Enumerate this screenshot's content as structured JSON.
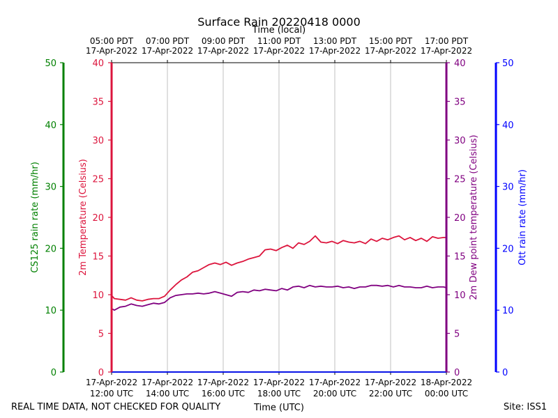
{
  "chart_data": {
    "type": "line",
    "title": "Surface Rain 20220418 0000",
    "top_xlabel": "Time (local)",
    "xlabel": "Time (UTC)",
    "footer_left": "REAL TIME DATA, NOT CHECKED FOR QUALITY",
    "footer_right": "Site: ISS1",
    "x_range_hours": [
      12,
      24
    ],
    "x_ticks": [
      {
        "hour": 12,
        "bottom": [
          "17-Apr-2022",
          "12:00 UTC"
        ],
        "top": [
          "05:00 PDT",
          "17-Apr-2022"
        ]
      },
      {
        "hour": 14,
        "bottom": [
          "17-Apr-2022",
          "14:00 UTC"
        ],
        "top": [
          "07:00 PDT",
          "17-Apr-2022"
        ]
      },
      {
        "hour": 16,
        "bottom": [
          "17-Apr-2022",
          "16:00 UTC"
        ],
        "top": [
          "09:00 PDT",
          "17-Apr-2022"
        ]
      },
      {
        "hour": 18,
        "bottom": [
          "17-Apr-2022",
          "18:00 UTC"
        ],
        "top": [
          "11:00 PDT",
          "17-Apr-2022"
        ]
      },
      {
        "hour": 20,
        "bottom": [
          "17-Apr-2022",
          "20:00 UTC"
        ],
        "top": [
          "13:00 PDT",
          "17-Apr-2022"
        ]
      },
      {
        "hour": 22,
        "bottom": [
          "17-Apr-2022",
          "22:00 UTC"
        ],
        "top": [
          "15:00 PDT",
          "17-Apr-2022"
        ]
      },
      {
        "hour": 24,
        "bottom": [
          "18-Apr-2022",
          "00:00 UTC"
        ],
        "top": [
          "17:00 PDT",
          "17-Apr-2022"
        ]
      }
    ],
    "axes": {
      "cs125": {
        "label": "CS125 rain rate (mm/hr)",
        "range": [
          0,
          50
        ],
        "ticks": [
          0,
          10,
          20,
          30,
          40,
          50
        ],
        "color": "#008000"
      },
      "temp": {
        "label": "2m Temperature (Celsius)",
        "range": [
          0,
          40
        ],
        "ticks": [
          0,
          5,
          10,
          15,
          20,
          25,
          30,
          35,
          40
        ],
        "color": "#dc143c"
      },
      "dew": {
        "label": "2m Dew point temperature (Celsius)",
        "range": [
          0,
          40
        ],
        "ticks": [
          0,
          5,
          10,
          15,
          20,
          25,
          30,
          35,
          40
        ],
        "color": "#800080"
      },
      "ott": {
        "label": "Ott rain rate (mm/hr)",
        "range": [
          0,
          50
        ],
        "ticks": [
          0,
          10,
          20,
          30,
          40,
          50
        ],
        "color": "#0000ff"
      }
    },
    "series": [
      {
        "name": "2m Temperature",
        "axis": "temp",
        "color": "#dc143c",
        "x": [
          12.0,
          12.1,
          12.3,
          12.5,
          12.7,
          12.9,
          13.1,
          13.3,
          13.5,
          13.7,
          13.9,
          14.1,
          14.3,
          14.5,
          14.7,
          14.9,
          15.1,
          15.3,
          15.5,
          15.7,
          15.9,
          16.1,
          16.3,
          16.5,
          16.7,
          16.9,
          17.1,
          17.3,
          17.5,
          17.7,
          17.9,
          18.1,
          18.3,
          18.5,
          18.7,
          18.9,
          19.1,
          19.3,
          19.5,
          19.7,
          19.9,
          20.1,
          20.3,
          20.5,
          20.7,
          20.9,
          21.1,
          21.3,
          21.5,
          21.7,
          21.9,
          22.1,
          22.3,
          22.5,
          22.7,
          22.9,
          23.1,
          23.3,
          23.5,
          23.7,
          23.9,
          24.0
        ],
        "values": [
          9.9,
          9.5,
          9.4,
          9.3,
          9.6,
          9.3,
          9.2,
          9.4,
          9.5,
          9.5,
          9.8,
          10.6,
          11.3,
          11.9,
          12.3,
          12.9,
          13.1,
          13.5,
          13.9,
          14.1,
          13.9,
          14.2,
          13.8,
          14.1,
          14.3,
          14.6,
          14.8,
          15.0,
          15.8,
          15.9,
          15.7,
          16.1,
          16.4,
          16.0,
          16.7,
          16.5,
          16.9,
          17.6,
          16.8,
          16.7,
          16.9,
          16.6,
          17.0,
          16.8,
          16.7,
          16.9,
          16.6,
          17.2,
          16.9,
          17.3,
          17.1,
          17.4,
          17.6,
          17.1,
          17.4,
          17.0,
          17.3,
          16.9,
          17.5,
          17.3,
          17.4,
          17.4
        ]
      },
      {
        "name": "2m Dew point temperature",
        "axis": "dew",
        "color": "#800080",
        "x": [
          12.0,
          12.1,
          12.3,
          12.5,
          12.7,
          12.9,
          13.1,
          13.3,
          13.5,
          13.7,
          13.9,
          14.1,
          14.3,
          14.5,
          14.7,
          14.9,
          15.1,
          15.3,
          15.5,
          15.7,
          15.9,
          16.1,
          16.3,
          16.5,
          16.7,
          16.9,
          17.1,
          17.3,
          17.5,
          17.7,
          17.9,
          18.1,
          18.3,
          18.5,
          18.7,
          18.9,
          19.1,
          19.3,
          19.5,
          19.7,
          19.9,
          20.1,
          20.3,
          20.5,
          20.7,
          20.9,
          21.1,
          21.3,
          21.5,
          21.7,
          21.9,
          22.1,
          22.3,
          22.5,
          22.7,
          22.9,
          23.1,
          23.3,
          23.5,
          23.7,
          23.9,
          24.0
        ],
        "values": [
          8.2,
          8.0,
          8.4,
          8.5,
          8.8,
          8.6,
          8.5,
          8.7,
          8.9,
          8.8,
          9.0,
          9.6,
          9.9,
          10.0,
          10.1,
          10.1,
          10.2,
          10.1,
          10.2,
          10.4,
          10.2,
          10.0,
          9.8,
          10.3,
          10.4,
          10.3,
          10.6,
          10.5,
          10.7,
          10.6,
          10.5,
          10.8,
          10.6,
          11.0,
          11.1,
          10.9,
          11.2,
          11.0,
          11.1,
          11.0,
          11.0,
          11.1,
          10.9,
          11.0,
          10.8,
          11.0,
          11.0,
          11.2,
          11.2,
          11.1,
          11.2,
          11.0,
          11.2,
          11.0,
          11.0,
          10.9,
          10.9,
          11.1,
          10.9,
          11.0,
          11.0,
          10.9
        ]
      },
      {
        "name": "CS125 rain rate",
        "axis": "cs125",
        "color": "#008000",
        "x": [
          12,
          24
        ],
        "values": [
          0,
          0
        ]
      },
      {
        "name": "Ott rain rate",
        "axis": "ott",
        "color": "#0000ff",
        "x": [
          12,
          24
        ],
        "values": [
          0,
          0
        ]
      }
    ]
  }
}
